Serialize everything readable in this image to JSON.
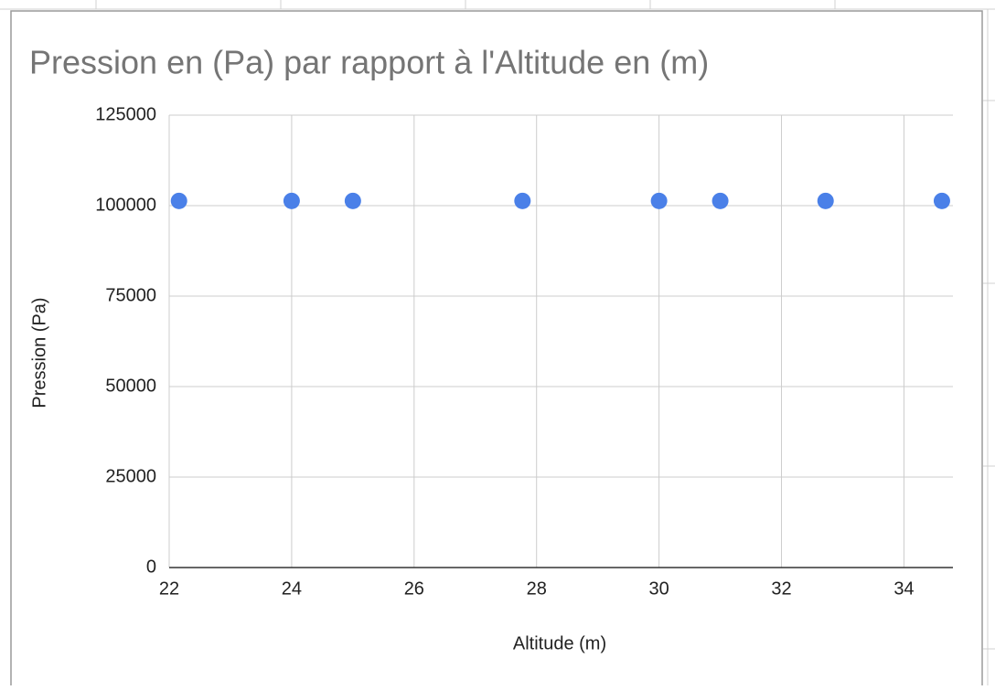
{
  "chart_data": {
    "type": "scatter",
    "title": "Pression en (Pa) par rapport à l'Altitude en (m)",
    "x_label": "Altitude (m)",
    "y_label": "Pression (Pa)",
    "series": [
      {
        "color": "#4a80e8",
        "x": [
          22.16,
          24.0,
          25.0,
          27.77,
          30.0,
          31.0,
          32.72,
          34.62
        ],
        "values": [
          101300,
          101300,
          101300,
          101300,
          101300,
          101300,
          101300,
          101300
        ]
      }
    ],
    "xlim": [
      22,
      34.8
    ],
    "xticks": [
      22,
      24,
      26,
      28,
      30,
      32,
      34
    ],
    "ylim": [
      0,
      125000
    ],
    "yticks": [
      0,
      25000,
      50000,
      75000,
      100000,
      125000
    ],
    "grid": true
  }
}
